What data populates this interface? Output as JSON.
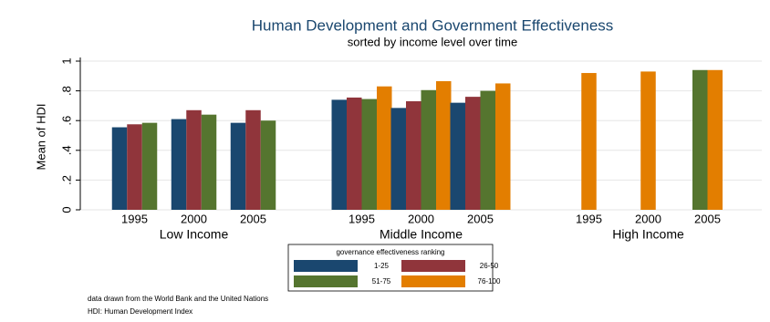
{
  "chart_data": {
    "type": "bar",
    "title": "Human Development and Government Effectiveness",
    "subtitle": "sorted by income level over time",
    "y_label": "Mean of HDI",
    "groups": [
      "Low Income",
      "Middle Income",
      "High Income"
    ],
    "categories": [
      "1995",
      "2000",
      "2005",
      "1995",
      "2000",
      "2005",
      "1995",
      "2000",
      "2005"
    ],
    "legend_title": "governance effectiveness ranking",
    "series": [
      {
        "name": "1-25",
        "color": "#1a476f",
        "values": [
          0.555,
          0.61,
          0.585,
          0.74,
          0.685,
          0.72,
          null,
          null,
          null
        ]
      },
      {
        "name": "26-50",
        "color": "#90353b",
        "values": [
          0.575,
          0.67,
          0.67,
          0.755,
          0.73,
          0.76,
          null,
          null,
          null
        ]
      },
      {
        "name": "51-75",
        "color": "#55752f",
        "values": [
          0.585,
          0.64,
          0.6,
          0.745,
          0.805,
          0.8,
          null,
          null,
          0.94
        ]
      },
      {
        "name": "76-100",
        "color": "#e37e00",
        "values": [
          null,
          null,
          null,
          0.83,
          0.865,
          0.85,
          0.92,
          0.93,
          0.94
        ]
      }
    ],
    "ylim": [
      0,
      1
    ],
    "yticks": [
      0,
      {
        "value": 0.2,
        "label": ".2"
      },
      {
        "value": 0.4,
        "label": ".4"
      },
      {
        "value": 0.6,
        "label": ".6"
      },
      {
        "value": 0.8,
        "label": ".8"
      },
      1
    ],
    "grid": true,
    "notes": [
      "data drawn from the World Bank and the United Nations",
      "HDI: Human Development Index"
    ]
  }
}
